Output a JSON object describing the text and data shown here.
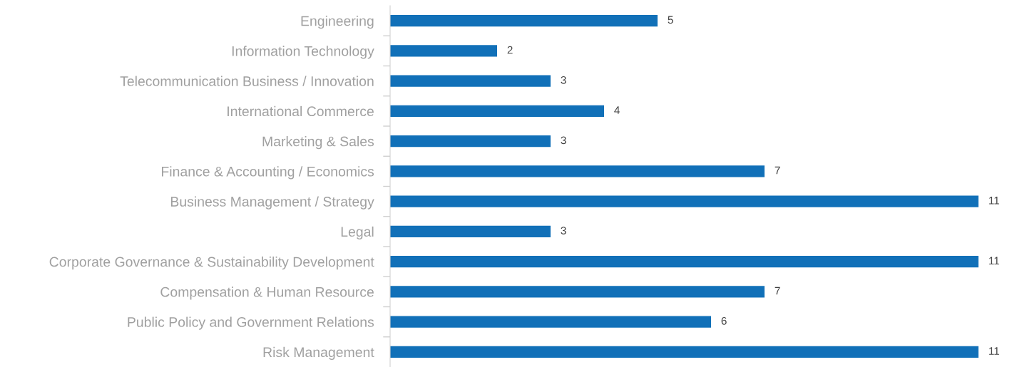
{
  "chart_data": {
    "type": "bar",
    "orientation": "horizontal",
    "categories": [
      "Engineering",
      "Information Technology",
      "Telecommunication Business / Innovation",
      "International Commerce",
      "Marketing & Sales",
      "Finance & Accounting / Economics",
      "Business Management / Strategy",
      "Legal",
      "Corporate Governance & Sustainability Development",
      "Compensation & Human Resource",
      "Public Policy and Government Relations",
      "Risk Management"
    ],
    "values": [
      5,
      2,
      3,
      4,
      3,
      7,
      11,
      3,
      11,
      7,
      6,
      11
    ],
    "color": "#1170b8",
    "data_labels": true,
    "tick_labels": "y",
    "grid": false,
    "legend": false
  }
}
